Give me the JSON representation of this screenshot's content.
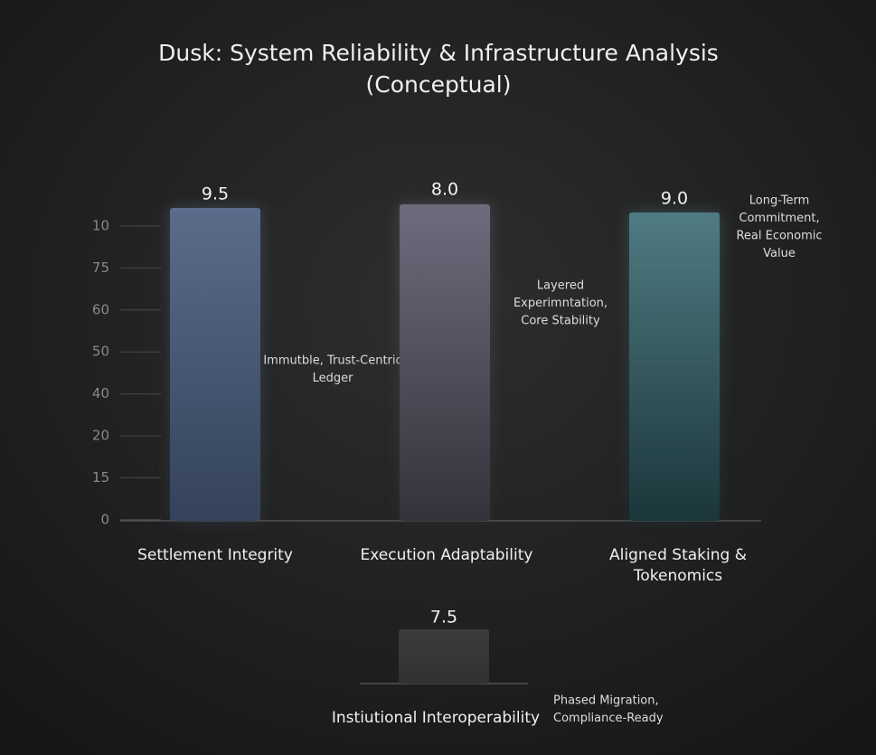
{
  "title_lines": [
    "Dusk: System Reliability & Infrastructure Analysis",
    "(Conceptual)"
  ],
  "axis_labels": [
    "10",
    "75",
    "60",
    "50",
    "40",
    "20",
    "15",
    "0"
  ],
  "panels": [
    {
      "label_lines": [
        "Settlement Integrity"
      ],
      "value_label": "9.5",
      "note_lines": [
        "Immutble, Trust-Centric",
        "Ledger"
      ]
    },
    {
      "label_lines": [
        "Execution Adaptability"
      ],
      "value_label": "8.0",
      "note_lines": [
        "Layered",
        "Experimntation,",
        "Core Stability"
      ]
    },
    {
      "label_lines": [
        "Aligned Staking &",
        "Tokenomics"
      ],
      "value_label": "9.0",
      "note_lines": [
        "Long-Term",
        "Commitment,",
        "Real Economic",
        "Value"
      ]
    },
    {
      "label_lines": [
        "Instiutional Interoperability"
      ],
      "value_label": "7.5",
      "note_lines": [
        "Phased Migration,",
        "Compliance-Ready"
      ]
    }
  ]
}
